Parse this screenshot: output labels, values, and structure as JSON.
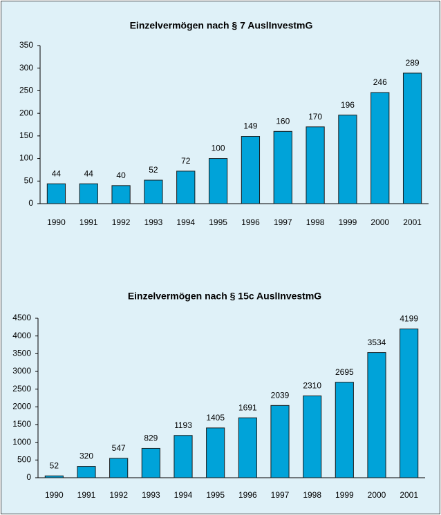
{
  "chart_data": [
    {
      "type": "bar",
      "title": "Einzelvermögen nach § 7 AuslInvestmG",
      "categories": [
        "1990",
        "1991",
        "1992",
        "1993",
        "1994",
        "1995",
        "1996",
        "1997",
        "1998",
        "1999",
        "2000",
        "2001"
      ],
      "values": [
        44,
        44,
        40,
        52,
        72,
        100,
        149,
        160,
        170,
        196,
        246,
        289
      ],
      "color": "#00a3d9",
      "ylim": [
        0,
        350
      ],
      "yticks": [
        0,
        50,
        100,
        150,
        200,
        250,
        300,
        350
      ],
      "grid": false
    },
    {
      "type": "bar",
      "title": "Einzelvermögen nach § 15c AuslInvestmG",
      "categories": [
        "1990",
        "1991",
        "1992",
        "1993",
        "1994",
        "1995",
        "1996",
        "1997",
        "1998",
        "1999",
        "2000",
        "2001"
      ],
      "values": [
        52,
        320,
        547,
        829,
        1193,
        1405,
        1691,
        2039,
        2310,
        2695,
        3534,
        4199
      ],
      "color": "#00a3d9",
      "ylim": [
        0,
        4500
      ],
      "yticks": [
        0,
        500,
        1000,
        1500,
        2000,
        2500,
        3000,
        3500,
        4000,
        4500
      ],
      "grid": false
    }
  ]
}
